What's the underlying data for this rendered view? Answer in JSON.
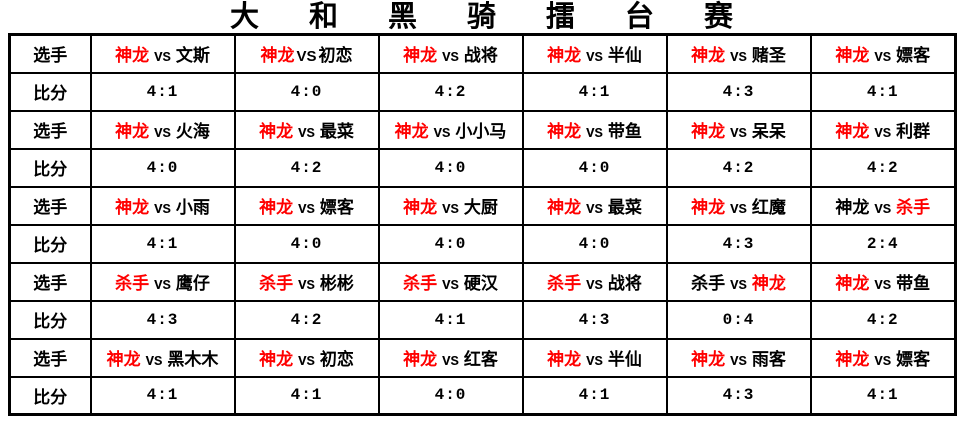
{
  "page_title": "大和黑骑擂台赛",
  "row_labels": {
    "player": "选手",
    "score": "比分"
  },
  "vs_text": "VS",
  "colors": {
    "winner_red": "#ff0000",
    "text_black": "#000000",
    "border": "#000000",
    "background": "#ffffff"
  },
  "rounds": [
    {
      "matches": [
        {
          "p1": "神龙",
          "p1_red": true,
          "p2": "文斯",
          "p2_red": false,
          "score": "4:1",
          "vs_bold": false
        },
        {
          "p1": "神龙",
          "p1_red": true,
          "p2": "初恋",
          "p2_red": false,
          "score": "4:0",
          "vs_bold": true
        },
        {
          "p1": "神龙",
          "p1_red": true,
          "p2": "战将",
          "p2_red": false,
          "score": "4:2",
          "vs_bold": false
        },
        {
          "p1": "神龙",
          "p1_red": true,
          "p2": "半仙",
          "p2_red": false,
          "score": "4:1",
          "vs_bold": false
        },
        {
          "p1": "神龙",
          "p1_red": true,
          "p2": "赌圣",
          "p2_red": false,
          "score": "4:3",
          "vs_bold": false
        },
        {
          "p1": "神龙",
          "p1_red": true,
          "p2": "嫖客",
          "p2_red": false,
          "score": "4:1",
          "vs_bold": false
        }
      ]
    },
    {
      "matches": [
        {
          "p1": "神龙",
          "p1_red": true,
          "p2": "火海",
          "p2_red": false,
          "score": "4:0",
          "vs_bold": false
        },
        {
          "p1": "神龙",
          "p1_red": true,
          "p2": "最菜",
          "p2_red": false,
          "score": "4:2",
          "vs_bold": false
        },
        {
          "p1": "神龙",
          "p1_red": true,
          "p2": "小小马",
          "p2_red": false,
          "score": "4:0",
          "vs_bold": false
        },
        {
          "p1": "神龙",
          "p1_red": true,
          "p2": "带鱼",
          "p2_red": false,
          "score": "4:0",
          "vs_bold": false
        },
        {
          "p1": "神龙",
          "p1_red": true,
          "p2": "呆呆",
          "p2_red": false,
          "score": "4:2",
          "vs_bold": false
        },
        {
          "p1": "神龙",
          "p1_red": true,
          "p2": "利群",
          "p2_red": false,
          "score": "4:2",
          "vs_bold": false
        }
      ]
    },
    {
      "matches": [
        {
          "p1": "神龙",
          "p1_red": true,
          "p2": "小雨",
          "p2_red": false,
          "score": "4:1",
          "vs_bold": false
        },
        {
          "p1": "神龙",
          "p1_red": true,
          "p2": "嫖客",
          "p2_red": false,
          "score": "4:0",
          "vs_bold": false
        },
        {
          "p1": "神龙",
          "p1_red": true,
          "p2": "大厨",
          "p2_red": false,
          "score": "4:0",
          "vs_bold": false
        },
        {
          "p1": "神龙",
          "p1_red": true,
          "p2": "最菜",
          "p2_red": false,
          "score": "4:0",
          "vs_bold": false
        },
        {
          "p1": "神龙",
          "p1_red": true,
          "p2": "红魔",
          "p2_red": false,
          "score": "4:3",
          "vs_bold": false
        },
        {
          "p1": "神龙",
          "p1_red": false,
          "p2": "杀手",
          "p2_red": true,
          "score": "2:4",
          "vs_bold": false
        }
      ]
    },
    {
      "matches": [
        {
          "p1": "杀手",
          "p1_red": true,
          "p2": "鹰仔",
          "p2_red": false,
          "score": "4:3",
          "vs_bold": false
        },
        {
          "p1": "杀手",
          "p1_red": true,
          "p2": "彬彬",
          "p2_red": false,
          "score": "4:2",
          "vs_bold": false
        },
        {
          "p1": "杀手",
          "p1_red": true,
          "p2": "硬汉",
          "p2_red": false,
          "score": "4:1",
          "vs_bold": false
        },
        {
          "p1": "杀手",
          "p1_red": true,
          "p2": "战将",
          "p2_red": false,
          "score": "4:3",
          "vs_bold": false
        },
        {
          "p1": "杀手",
          "p1_red": false,
          "p2": "神龙",
          "p2_red": true,
          "score": "0:4",
          "vs_bold": false
        },
        {
          "p1": "神龙",
          "p1_red": true,
          "p2": "带鱼",
          "p2_red": false,
          "score": "4:2",
          "vs_bold": false
        }
      ]
    },
    {
      "matches": [
        {
          "p1": "神龙",
          "p1_red": true,
          "p2": "黑木木",
          "p2_red": false,
          "score": "4:1",
          "vs_bold": false
        },
        {
          "p1": "神龙",
          "p1_red": true,
          "p2": "初恋",
          "p2_red": false,
          "score": "4:1",
          "vs_bold": false
        },
        {
          "p1": "神龙",
          "p1_red": true,
          "p2": "红客",
          "p2_red": false,
          "score": "4:0",
          "vs_bold": false
        },
        {
          "p1": "神龙",
          "p1_red": true,
          "p2": "半仙",
          "p2_red": false,
          "score": "4:1",
          "vs_bold": false
        },
        {
          "p1": "神龙",
          "p1_red": true,
          "p2": "雨客",
          "p2_red": false,
          "score": "4:3",
          "vs_bold": false
        },
        {
          "p1": "神龙",
          "p1_red": true,
          "p2": "嫖客",
          "p2_red": false,
          "score": "4:1",
          "vs_bold": false
        }
      ]
    }
  ]
}
